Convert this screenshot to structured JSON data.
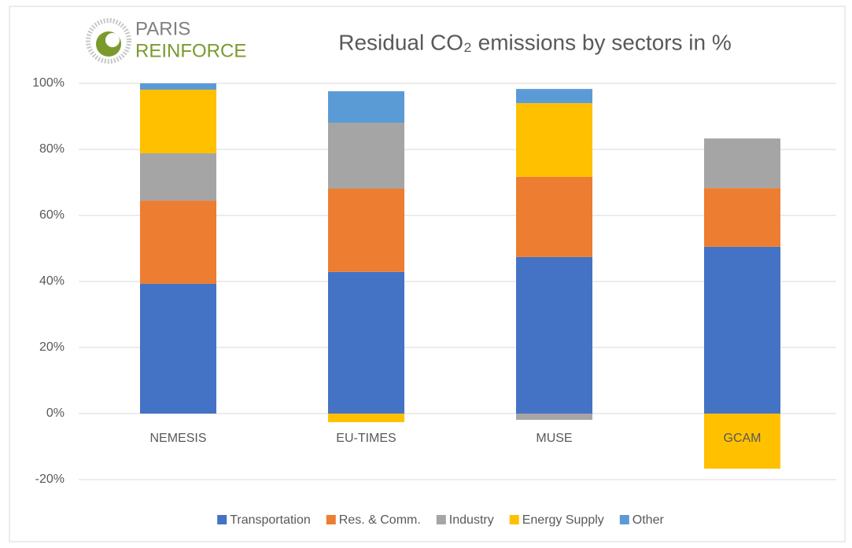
{
  "chart_data": {
    "type": "stacked_bar",
    "title": "Residual CO₂ emissions by sectors in %",
    "logo": [
      "PARIS",
      "REINFORCE"
    ],
    "categories": [
      "NEMESIS",
      "EU-TIMES",
      "MUSE",
      "GCAM"
    ],
    "series": [
      {
        "name": "Transportation",
        "color": "#4472c4",
        "values": [
          39.3,
          42.9,
          47.4,
          50.5
        ]
      },
      {
        "name": "Res. & Comm.",
        "color": "#ed7d31",
        "values": [
          25.2,
          25.2,
          24.3,
          17.8
        ]
      },
      {
        "name": "Industry",
        "color": "#a5a5a5",
        "values": [
          14.3,
          20.0,
          -1.9,
          15.0
        ]
      },
      {
        "name": "Energy Supply",
        "color": "#ffc000",
        "values": [
          19.3,
          -2.6,
          22.3,
          -16.7
        ]
      },
      {
        "name": "Other",
        "color": "#5b9bd5",
        "values": [
          1.9,
          9.5,
          4.3,
          0
        ]
      }
    ],
    "ylim": [
      -20,
      100
    ],
    "yticks": [
      {
        "value": -20,
        "label": "-20%"
      },
      {
        "value": 0,
        "label": "0%"
      },
      {
        "value": 20,
        "label": "20%"
      },
      {
        "value": 40,
        "label": "40%"
      },
      {
        "value": 60,
        "label": "60%"
      },
      {
        "value": 80,
        "label": "80%"
      },
      {
        "value": 100,
        "label": "100%"
      }
    ],
    "grid": true,
    "legend": "bottom"
  }
}
